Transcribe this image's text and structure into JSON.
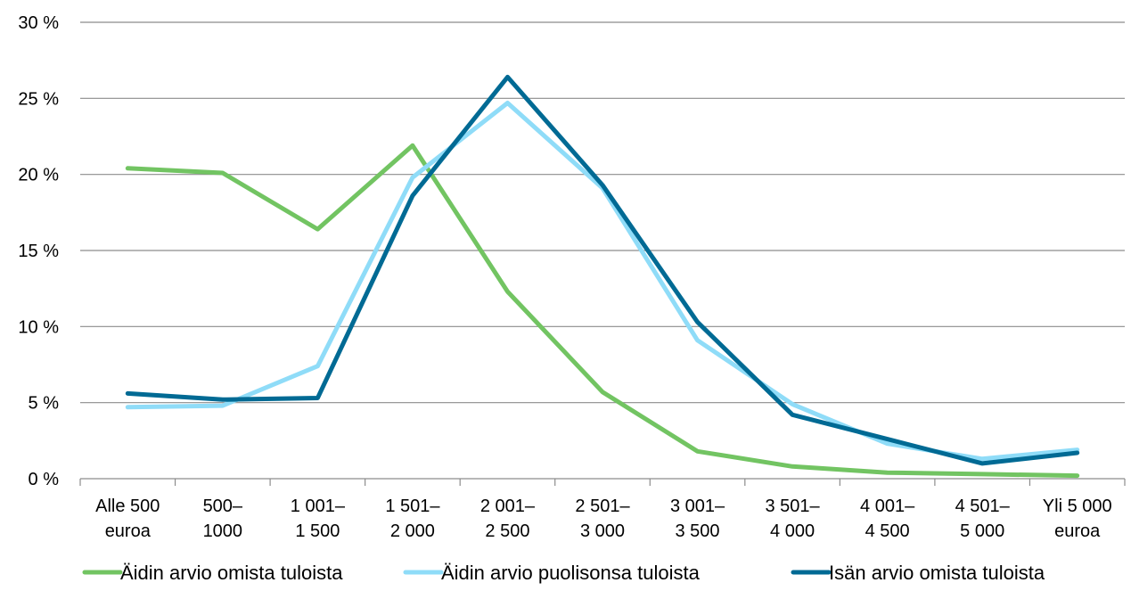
{
  "chart_data": {
    "type": "line",
    "categories": [
      [
        "Alle 500",
        "euroa"
      ],
      [
        "500–",
        "1000"
      ],
      [
        "1 001–",
        "1 500"
      ],
      [
        "1 501–",
        "2 000"
      ],
      [
        "2 001–",
        "2 500"
      ],
      [
        "2 501–",
        "3 000"
      ],
      [
        "3 001–",
        "3 500"
      ],
      [
        "3 501–",
        "4 000"
      ],
      [
        "4 001–",
        "4 500"
      ],
      [
        "4 501–",
        "5 000"
      ],
      [
        "Yli 5 000",
        "euroa"
      ]
    ],
    "y_ticks": [
      "0 %",
      "5 %",
      "10 %",
      "15 %",
      "20 %",
      "25 %",
      "30 %"
    ],
    "ylim": [
      0,
      30
    ],
    "y_step": 5,
    "grid": true,
    "legend_position": "bottom",
    "series": [
      {
        "name": "Äidin arvio omista tuloista",
        "color": "#72c462",
        "values": [
          20.4,
          20.1,
          16.4,
          21.9,
          12.3,
          5.7,
          1.8,
          0.8,
          0.4,
          0.3,
          0.2
        ]
      },
      {
        "name": "Äidin arvio puolisonsa tuloista",
        "color": "#8fdcf8",
        "values": [
          4.7,
          4.8,
          7.4,
          19.8,
          24.7,
          19.1,
          9.1,
          4.9,
          2.3,
          1.3,
          1.9
        ]
      },
      {
        "name": "Isän arvio omista tuloista",
        "color": "#006a94",
        "values": [
          5.6,
          5.2,
          5.3,
          18.6,
          26.4,
          19.3,
          10.3,
          4.2,
          2.6,
          1.0,
          1.7
        ]
      }
    ]
  }
}
